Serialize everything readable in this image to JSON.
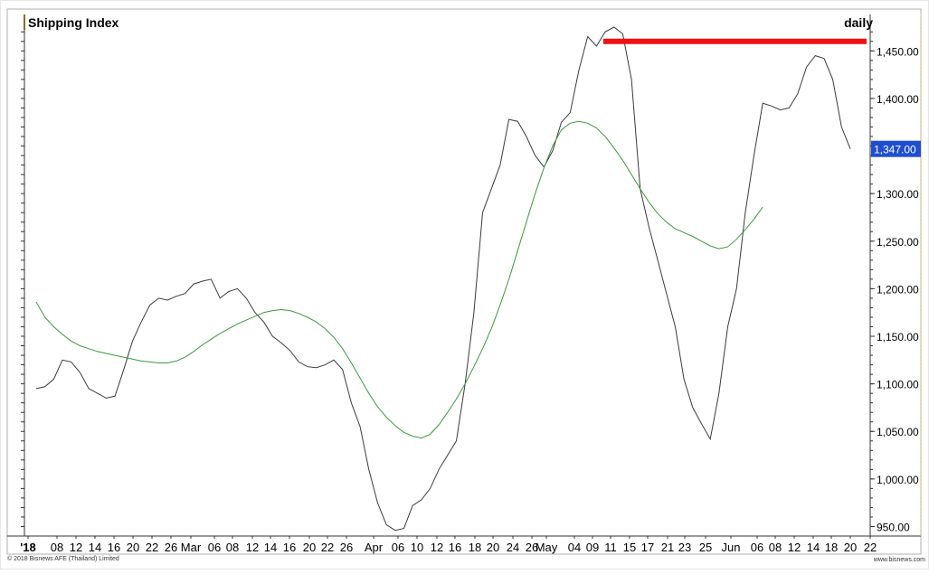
{
  "chart_data": {
    "type": "line",
    "title": "Shipping Index",
    "interval": "daily",
    "copyright": "© 2018 Bisnews AFE (Thailand) Limited",
    "site": "www.bisnews.com",
    "ylim": [
      940,
      1475
    ],
    "yticks": [
      "950.00",
      "1,000.00",
      "1,050.00",
      "1,100.00",
      "1,150.00",
      "1,200.00",
      "1,250.00",
      "1,300.00",
      "1,350.00",
      "1,400.00",
      "1,450.00"
    ],
    "last_value_label": "1,347.00",
    "last_value": 1347,
    "resistance_level": 1460,
    "x_labels": [
      "'18",
      "08",
      "12",
      "14",
      "16",
      "20",
      "22",
      "26",
      "Mar",
      "06",
      "08",
      "12",
      "14",
      "16",
      "20",
      "22",
      "26",
      "Apr",
      "06",
      "10",
      "12",
      "16",
      "18",
      "20",
      "24",
      "26",
      "May",
      "04",
      "09",
      "11",
      "15",
      "17",
      "21",
      "23",
      "25",
      "Jun",
      "06",
      "08",
      "12",
      "14",
      "18",
      "20",
      "22"
    ],
    "series": [
      {
        "values": [
          1095,
          1097,
          1105,
          1125,
          1123,
          1112,
          1095,
          1090,
          1085,
          1087,
          1115,
          1145,
          1165,
          1183,
          1190,
          1188,
          1192,
          1195,
          1205,
          1208,
          1210,
          1190,
          1197,
          1200,
          1190,
          1175,
          1165,
          1150,
          1143,
          1135,
          1123,
          1118,
          1117,
          1120,
          1125,
          1115,
          1080,
          1055,
          1010,
          975,
          952,
          946,
          948,
          972,
          978,
          990,
          1010,
          1025,
          1040,
          1100,
          1175,
          1280,
          1305,
          1330,
          1378,
          1376,
          1360,
          1340,
          1328,
          1345,
          1375,
          1385,
          1430,
          1465,
          1455,
          1470,
          1475,
          1468,
          1420,
          1305,
          1265,
          1230,
          1195,
          1160,
          1105,
          1075,
          1058,
          1042,
          1090,
          1160,
          1200,
          1280,
          1340,
          1395,
          1392,
          1388,
          1390,
          1405,
          1433,
          1445,
          1442,
          1420,
          1370,
          1347
        ]
      },
      {
        "values": [
          1186,
          1170,
          1160,
          1152,
          1145,
          1140,
          1137,
          1134,
          1132,
          1130,
          1128,
          1126,
          1124,
          1123,
          1122,
          1122,
          1124,
          1128,
          1134,
          1141,
          1147,
          1153,
          1158,
          1163,
          1167,
          1171,
          1175,
          1177,
          1178,
          1177,
          1174,
          1170,
          1165,
          1158,
          1149,
          1137,
          1122,
          1106,
          1090,
          1076,
          1065,
          1056,
          1049,
          1045,
          1043,
          1047,
          1057,
          1070,
          1084,
          1100,
          1118,
          1137,
          1158,
          1183,
          1210,
          1240,
          1270,
          1300,
          1327,
          1350,
          1367,
          1374,
          1376,
          1374,
          1369,
          1360,
          1348,
          1335,
          1320,
          1305,
          1291,
          1279,
          1270,
          1263,
          1259,
          1255,
          1250,
          1245,
          1242,
          1244,
          1252,
          1262,
          1273,
          1286
        ]
      }
    ]
  }
}
